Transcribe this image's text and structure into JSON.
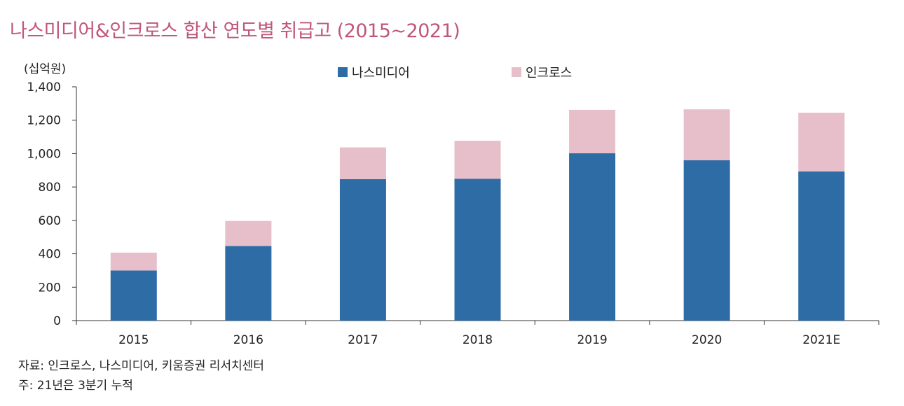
{
  "chart_data": {
    "type": "bar",
    "stacked": true,
    "title": "나스미디어&인크로스 합산 연도별 취급고 (2015~2021)",
    "ylabel": "(십억원)",
    "categories": [
      "2015",
      "2016",
      "2017",
      "2018",
      "2019",
      "2020",
      "2021E"
    ],
    "series": [
      {
        "name": "나스미디어",
        "color": "#2e6ca6",
        "values": [
          300,
          447,
          847,
          849,
          1002,
          960,
          893
        ]
      },
      {
        "name": "인크로스",
        "color": "#e6bfcb",
        "values": [
          107,
          150,
          190,
          228,
          260,
          305,
          352
        ]
      }
    ],
    "ylim": [
      0,
      1400
    ],
    "yticks": [
      "0",
      "200",
      "400",
      "600",
      "800",
      "1,000",
      "1,200",
      "1,400"
    ],
    "grid": false,
    "legend": "top-center"
  },
  "footer": {
    "source": "자료: 인크로스, 나스미디어, 키움증권 리서치센터",
    "note": "주: 21년은 3분기 누적"
  }
}
